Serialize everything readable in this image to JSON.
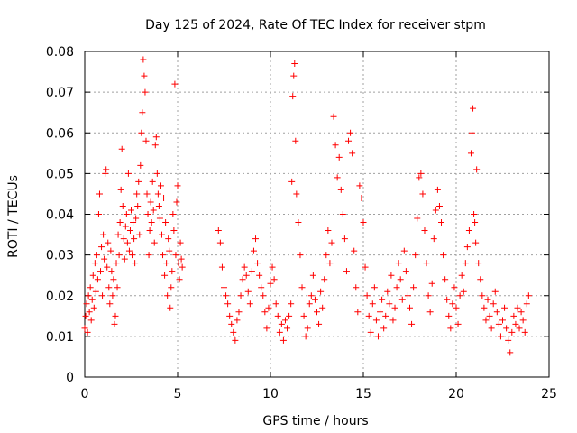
{
  "chart_data": {
    "type": "scatter",
    "title": "Day 125 of 2024, Rate Of TEC Index for receiver stpm",
    "xlabel": "GPS time / hours",
    "ylabel": "ROTI / TECUs",
    "xlim": [
      0,
      25
    ],
    "ylim": [
      0,
      0.08
    ],
    "xticks": [
      0,
      5,
      10,
      15,
      20,
      25
    ],
    "xtick_labels": [
      "0",
      "5",
      "10",
      "15",
      "20",
      "25"
    ],
    "yticks": [
      0,
      0.01,
      0.02,
      0.03,
      0.04,
      0.05,
      0.06,
      0.07,
      0.08
    ],
    "ytick_labels": [
      "0",
      "0.01",
      "0.02",
      "0.03",
      "0.04",
      "0.05",
      "0.06",
      "0.07",
      "0.08"
    ],
    "grid": true,
    "marker": "+",
    "color": "#ff0000",
    "series": [
      {
        "name": "ROTI",
        "points": [
          [
            0.0,
            0.012
          ],
          [
            0.05,
            0.015
          ],
          [
            0.1,
            0.018
          ],
          [
            0.15,
            0.011
          ],
          [
            0.2,
            0.02
          ],
          [
            0.25,
            0.016
          ],
          [
            0.3,
            0.022
          ],
          [
            0.35,
            0.014
          ],
          [
            0.4,
            0.019
          ],
          [
            0.45,
            0.025
          ],
          [
            0.5,
            0.017
          ],
          [
            0.55,
            0.028
          ],
          [
            0.6,
            0.021
          ],
          [
            0.65,
            0.03
          ],
          [
            0.7,
            0.024
          ],
          [
            0.75,
            0.04
          ],
          [
            0.8,
            0.045
          ],
          [
            0.85,
            0.026
          ],
          [
            0.9,
            0.032
          ],
          [
            0.95,
            0.02
          ],
          [
            1.0,
            0.035
          ],
          [
            1.05,
            0.029
          ],
          [
            1.1,
            0.05
          ],
          [
            1.15,
            0.051
          ],
          [
            1.2,
            0.027
          ],
          [
            1.25,
            0.033
          ],
          [
            1.3,
            0.022
          ],
          [
            1.35,
            0.018
          ],
          [
            1.4,
            0.031
          ],
          [
            1.45,
            0.026
          ],
          [
            1.5,
            0.02
          ],
          [
            1.55,
            0.024
          ],
          [
            1.6,
            0.013
          ],
          [
            1.65,
            0.015
          ],
          [
            1.7,
            0.028
          ],
          [
            1.75,
            0.022
          ],
          [
            1.8,
            0.035
          ],
          [
            1.85,
            0.03
          ],
          [
            1.9,
            0.038
          ],
          [
            1.95,
            0.046
          ],
          [
            2.0,
            0.056
          ],
          [
            2.05,
            0.042
          ],
          [
            2.1,
            0.034
          ],
          [
            2.15,
            0.029
          ],
          [
            2.2,
            0.037
          ],
          [
            2.25,
            0.04
          ],
          [
            2.3,
            0.033
          ],
          [
            2.35,
            0.05
          ],
          [
            2.4,
            0.031
          ],
          [
            2.45,
            0.036
          ],
          [
            2.5,
            0.041
          ],
          [
            2.55,
            0.03
          ],
          [
            2.6,
            0.038
          ],
          [
            2.65,
            0.034
          ],
          [
            2.7,
            0.028
          ],
          [
            2.75,
            0.039
          ],
          [
            2.8,
            0.045
          ],
          [
            2.85,
            0.042
          ],
          [
            2.9,
            0.048
          ],
          [
            2.95,
            0.035
          ],
          [
            3.0,
            0.052
          ],
          [
            3.05,
            0.06
          ],
          [
            3.1,
            0.065
          ],
          [
            3.15,
            0.078
          ],
          [
            3.2,
            0.074
          ],
          [
            3.25,
            0.07
          ],
          [
            3.3,
            0.058
          ],
          [
            3.35,
            0.045
          ],
          [
            3.4,
            0.04
          ],
          [
            3.45,
            0.03
          ],
          [
            3.5,
            0.036
          ],
          [
            3.55,
            0.043
          ],
          [
            3.6,
            0.038
          ],
          [
            3.65,
            0.048
          ],
          [
            3.7,
            0.041
          ],
          [
            3.75,
            0.033
          ],
          [
            3.8,
            0.057
          ],
          [
            3.85,
            0.059
          ],
          [
            3.9,
            0.05
          ],
          [
            3.95,
            0.045
          ],
          [
            4.0,
            0.042
          ],
          [
            4.05,
            0.039
          ],
          [
            4.1,
            0.047
          ],
          [
            4.15,
            0.035
          ],
          [
            4.2,
            0.03
          ],
          [
            4.25,
            0.044
          ],
          [
            4.3,
            0.025
          ],
          [
            4.35,
            0.038
          ],
          [
            4.4,
            0.028
          ],
          [
            4.45,
            0.02
          ],
          [
            4.5,
            0.034
          ],
          [
            4.55,
            0.031
          ],
          [
            4.6,
            0.017
          ],
          [
            4.65,
            0.022
          ],
          [
            4.7,
            0.026
          ],
          [
            4.75,
            0.04
          ],
          [
            4.8,
            0.036
          ],
          [
            4.85,
            0.072
          ],
          [
            4.9,
            0.03
          ],
          [
            4.95,
            0.043
          ],
          [
            5.0,
            0.047
          ],
          [
            5.05,
            0.028
          ],
          [
            5.1,
            0.024
          ],
          [
            5.15,
            0.033
          ],
          [
            5.2,
            0.029
          ],
          [
            5.25,
            0.027
          ],
          [
            7.2,
            0.036
          ],
          [
            7.3,
            0.033
          ],
          [
            7.4,
            0.027
          ],
          [
            7.5,
            0.022
          ],
          [
            7.6,
            0.02
          ],
          [
            7.7,
            0.018
          ],
          [
            7.8,
            0.015
          ],
          [
            7.9,
            0.013
          ],
          [
            8.0,
            0.011
          ],
          [
            8.1,
            0.009
          ],
          [
            8.2,
            0.014
          ],
          [
            8.3,
            0.016
          ],
          [
            8.4,
            0.02
          ],
          [
            8.5,
            0.024
          ],
          [
            8.6,
            0.027
          ],
          [
            8.7,
            0.025
          ],
          [
            8.8,
            0.021
          ],
          [
            8.9,
            0.018
          ],
          [
            9.0,
            0.026
          ],
          [
            9.1,
            0.031
          ],
          [
            9.2,
            0.034
          ],
          [
            9.3,
            0.028
          ],
          [
            9.4,
            0.025
          ],
          [
            9.5,
            0.022
          ],
          [
            9.6,
            0.02
          ],
          [
            9.7,
            0.016
          ],
          [
            9.8,
            0.012
          ],
          [
            9.9,
            0.017
          ],
          [
            10.0,
            0.023
          ],
          [
            10.1,
            0.027
          ],
          [
            10.2,
            0.024
          ],
          [
            10.3,
            0.018
          ],
          [
            10.4,
            0.015
          ],
          [
            10.5,
            0.011
          ],
          [
            10.6,
            0.013
          ],
          [
            10.7,
            0.009
          ],
          [
            10.8,
            0.014
          ],
          [
            10.9,
            0.012
          ],
          [
            11.0,
            0.015
          ],
          [
            11.1,
            0.018
          ],
          [
            11.15,
            0.048
          ],
          [
            11.2,
            0.069
          ],
          [
            11.25,
            0.074
          ],
          [
            11.3,
            0.077
          ],
          [
            11.35,
            0.058
          ],
          [
            11.4,
            0.045
          ],
          [
            11.5,
            0.038
          ],
          [
            11.6,
            0.03
          ],
          [
            11.7,
            0.022
          ],
          [
            11.8,
            0.015
          ],
          [
            11.9,
            0.01
          ],
          [
            12.0,
            0.012
          ],
          [
            12.1,
            0.018
          ],
          [
            12.2,
            0.02
          ],
          [
            12.3,
            0.025
          ],
          [
            12.4,
            0.019
          ],
          [
            12.5,
            0.016
          ],
          [
            12.6,
            0.013
          ],
          [
            12.7,
            0.021
          ],
          [
            12.8,
            0.017
          ],
          [
            12.9,
            0.024
          ],
          [
            13.0,
            0.03
          ],
          [
            13.1,
            0.036
          ],
          [
            13.2,
            0.028
          ],
          [
            13.3,
            0.033
          ],
          [
            13.4,
            0.064
          ],
          [
            13.5,
            0.057
          ],
          [
            13.6,
            0.049
          ],
          [
            13.7,
            0.054
          ],
          [
            13.8,
            0.046
          ],
          [
            13.9,
            0.04
          ],
          [
            14.0,
            0.034
          ],
          [
            14.1,
            0.026
          ],
          [
            14.2,
            0.058
          ],
          [
            14.3,
            0.06
          ],
          [
            14.4,
            0.055
          ],
          [
            14.5,
            0.031
          ],
          [
            14.6,
            0.022
          ],
          [
            14.7,
            0.016
          ],
          [
            14.8,
            0.047
          ],
          [
            14.9,
            0.044
          ],
          [
            15.0,
            0.038
          ],
          [
            15.1,
            0.027
          ],
          [
            15.2,
            0.02
          ],
          [
            15.3,
            0.015
          ],
          [
            15.4,
            0.011
          ],
          [
            15.5,
            0.018
          ],
          [
            15.6,
            0.022
          ],
          [
            15.7,
            0.014
          ],
          [
            15.8,
            0.01
          ],
          [
            15.9,
            0.016
          ],
          [
            16.0,
            0.019
          ],
          [
            16.1,
            0.012
          ],
          [
            16.2,
            0.015
          ],
          [
            16.3,
            0.021
          ],
          [
            16.4,
            0.018
          ],
          [
            16.5,
            0.025
          ],
          [
            16.6,
            0.014
          ],
          [
            16.7,
            0.017
          ],
          [
            16.8,
            0.022
          ],
          [
            16.9,
            0.028
          ],
          [
            17.0,
            0.024
          ],
          [
            17.1,
            0.019
          ],
          [
            17.2,
            0.031
          ],
          [
            17.3,
            0.026
          ],
          [
            17.4,
            0.02
          ],
          [
            17.5,
            0.017
          ],
          [
            17.6,
            0.013
          ],
          [
            17.7,
            0.022
          ],
          [
            17.8,
            0.03
          ],
          [
            17.9,
            0.039
          ],
          [
            18.0,
            0.049
          ],
          [
            18.1,
            0.05
          ],
          [
            18.2,
            0.045
          ],
          [
            18.3,
            0.036
          ],
          [
            18.4,
            0.028
          ],
          [
            18.5,
            0.02
          ],
          [
            18.6,
            0.016
          ],
          [
            18.7,
            0.023
          ],
          [
            18.8,
            0.034
          ],
          [
            18.9,
            0.041
          ],
          [
            19.0,
            0.046
          ],
          [
            19.1,
            0.042
          ],
          [
            19.2,
            0.038
          ],
          [
            19.3,
            0.03
          ],
          [
            19.4,
            0.024
          ],
          [
            19.5,
            0.019
          ],
          [
            19.6,
            0.015
          ],
          [
            19.7,
            0.012
          ],
          [
            19.8,
            0.018
          ],
          [
            19.9,
            0.022
          ],
          [
            20.0,
            0.017
          ],
          [
            20.1,
            0.013
          ],
          [
            20.2,
            0.02
          ],
          [
            20.3,
            0.025
          ],
          [
            20.4,
            0.021
          ],
          [
            20.5,
            0.028
          ],
          [
            20.6,
            0.032
          ],
          [
            20.7,
            0.036
          ],
          [
            20.8,
            0.055
          ],
          [
            20.85,
            0.06
          ],
          [
            20.9,
            0.066
          ],
          [
            20.95,
            0.04
          ],
          [
            21.0,
            0.038
          ],
          [
            21.05,
            0.033
          ],
          [
            21.1,
            0.051
          ],
          [
            21.2,
            0.028
          ],
          [
            21.3,
            0.024
          ],
          [
            21.4,
            0.02
          ],
          [
            21.5,
            0.017
          ],
          [
            21.6,
            0.014
          ],
          [
            21.7,
            0.019
          ],
          [
            21.8,
            0.015
          ],
          [
            21.9,
            0.012
          ],
          [
            22.0,
            0.018
          ],
          [
            22.1,
            0.021
          ],
          [
            22.2,
            0.016
          ],
          [
            22.3,
            0.013
          ],
          [
            22.4,
            0.01
          ],
          [
            22.5,
            0.014
          ],
          [
            22.6,
            0.017
          ],
          [
            22.7,
            0.012
          ],
          [
            22.8,
            0.009
          ],
          [
            22.9,
            0.006
          ],
          [
            23.0,
            0.011
          ],
          [
            23.1,
            0.015
          ],
          [
            23.2,
            0.013
          ],
          [
            23.3,
            0.017
          ],
          [
            23.4,
            0.012
          ],
          [
            23.5,
            0.016
          ],
          [
            23.6,
            0.014
          ],
          [
            23.7,
            0.011
          ],
          [
            23.8,
            0.018
          ],
          [
            23.9,
            0.02
          ]
        ]
      }
    ]
  }
}
